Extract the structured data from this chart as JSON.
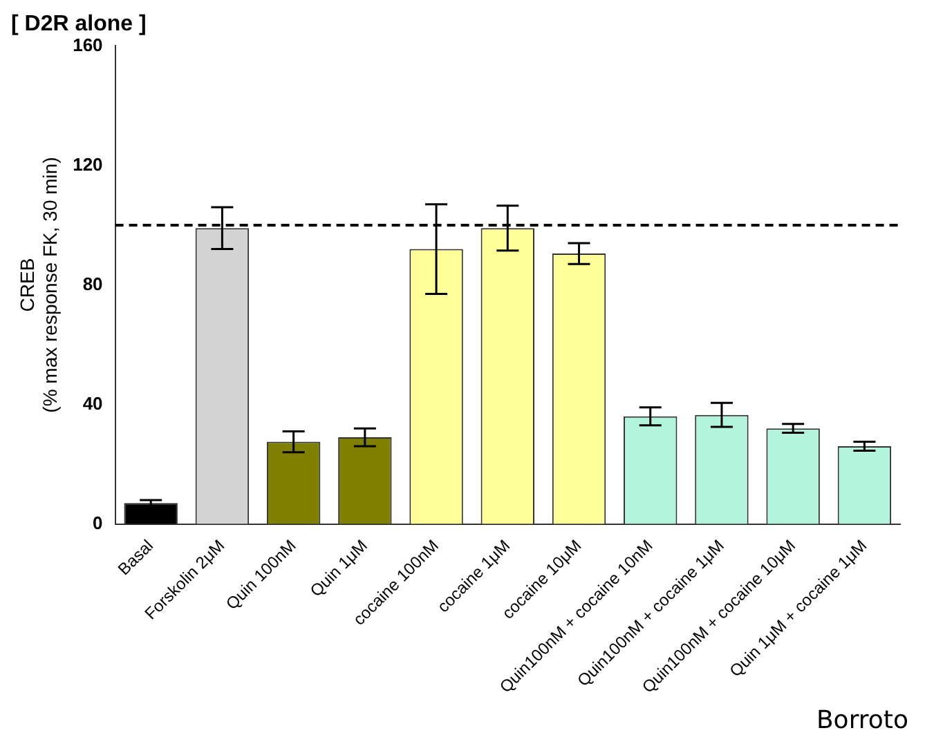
{
  "chart_data": {
    "type": "bar",
    "title": "[ D2R alone ]",
    "ylabel": "CREB\n(% max response FK, 30 min)",
    "categories": [
      "Basal",
      "Forskolin 2μM",
      "Quin 100nM",
      "Quin 1μM",
      "cocaine 100nM",
      "cocaine 1μM",
      "cocaine 10μM",
      "Quin100nM + cocaine 10nM",
      "Quin100nM + cocaine 1μM",
      "Quin100nM + cocaine 10μM",
      "Quin 1μM + cocaine 1μM"
    ],
    "values": [
      7,
      99,
      27.5,
      29,
      92,
      99,
      90.5,
      36,
      36.5,
      32,
      26
    ],
    "errors": [
      1,
      7,
      3.5,
      3,
      15,
      7.5,
      3.5,
      3,
      4,
      1.5,
      1.5
    ],
    "colors": [
      "#000000",
      "#d3d3d3",
      "#808000",
      "#808000",
      "#ffff99",
      "#ffff99",
      "#ffff99",
      "#b3f5dc",
      "#b3f5dc",
      "#b3f5dc",
      "#b3f5dc"
    ],
    "ylim": [
      0,
      160
    ],
    "yticks": [
      0,
      40,
      80,
      120,
      160
    ],
    "ref_lines": [
      {
        "axis": "y",
        "value": 100,
        "line_style": "dashed",
        "color": "#000000"
      }
    ],
    "grid": false,
    "legend": false,
    "annotations": [
      "Borroto"
    ]
  }
}
